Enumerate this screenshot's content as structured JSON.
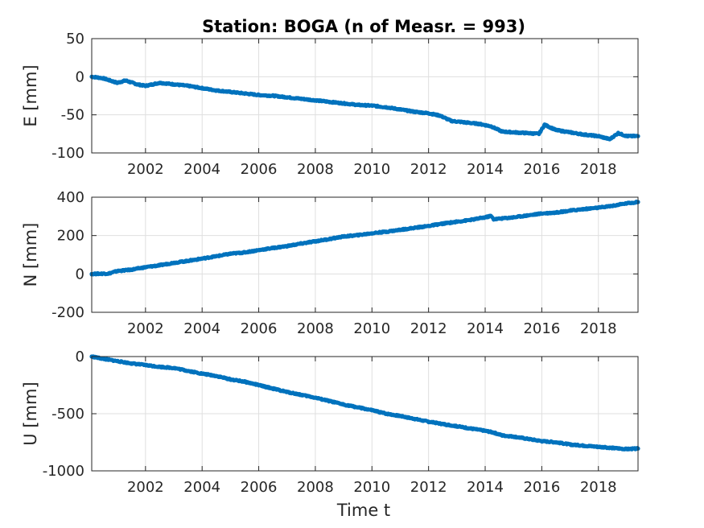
{
  "chart_data": {
    "type": "scatter",
    "title": "Station: BOGA (n of Measr. = 993)",
    "xlabel": "Time t",
    "x_ticks": [
      "2002",
      "2004",
      "2006",
      "2008",
      "2010",
      "2012",
      "2014",
      "2016",
      "2018"
    ],
    "xlim": [
      2000.1,
      2019.4
    ],
    "grid": true,
    "marker_color": "#0072BD",
    "panels": [
      {
        "id": "E",
        "ylabel": "E [mm]",
        "ylim": [
          -100,
          50
        ],
        "y_ticks": [
          "-100",
          "-50",
          "0",
          "50"
        ],
        "series": {
          "x": [
            2000.1,
            2000.5,
            2001.0,
            2001.3,
            2001.7,
            2002.0,
            2002.5,
            2003.0,
            2003.5,
            2004.0,
            2004.5,
            2005.0,
            2005.5,
            2006.0,
            2006.5,
            2007.0,
            2007.5,
            2008.0,
            2008.5,
            2009.0,
            2009.5,
            2010.0,
            2010.5,
            2011.0,
            2011.5,
            2012.0,
            2012.4,
            2012.8,
            2013.3,
            2013.8,
            2014.2,
            2014.6,
            2015.0,
            2015.5,
            2015.9,
            2016.1,
            2016.5,
            2017.0,
            2017.5,
            2018.0,
            2018.4,
            2018.7,
            2019.0,
            2019.4
          ],
          "y": [
            0,
            -2,
            -8,
            -5,
            -10,
            -12,
            -8,
            -10,
            -12,
            -15,
            -18,
            -20,
            -22,
            -24,
            -25,
            -27,
            -29,
            -31,
            -33,
            -35,
            -37,
            -38,
            -40,
            -43,
            -46,
            -48,
            -51,
            -58,
            -60,
            -62,
            -65,
            -72,
            -73,
            -74,
            -75,
            -63,
            -70,
            -73,
            -76,
            -78,
            -82,
            -74,
            -78,
            -78
          ]
        }
      },
      {
        "id": "N",
        "ylabel": "N [mm]",
        "ylim": [
          -200,
          400
        ],
        "y_ticks": [
          "-200",
          "0",
          "200",
          "400"
        ],
        "series": {
          "x": [
            2000.1,
            2000.7,
            2001.0,
            2001.5,
            2002.0,
            2002.5,
            2003.0,
            2003.5,
            2004.0,
            2004.5,
            2005.0,
            2005.5,
            2006.0,
            2006.5,
            2007.0,
            2007.5,
            2008.0,
            2008.5,
            2009.0,
            2009.5,
            2010.0,
            2010.5,
            2011.0,
            2011.5,
            2012.0,
            2012.5,
            2013.0,
            2013.5,
            2014.0,
            2014.2,
            2014.3,
            2015.0,
            2015.5,
            2016.0,
            2016.5,
            2017.0,
            2017.5,
            2018.0,
            2018.5,
            2019.0,
            2019.4
          ],
          "y": [
            0,
            2,
            15,
            22,
            35,
            45,
            58,
            68,
            80,
            92,
            105,
            112,
            124,
            135,
            145,
            158,
            170,
            182,
            195,
            202,
            212,
            220,
            230,
            240,
            250,
            262,
            272,
            282,
            295,
            302,
            285,
            295,
            305,
            315,
            320,
            330,
            338,
            345,
            355,
            368,
            375
          ]
        }
      },
      {
        "id": "U",
        "ylabel": "U [mm]",
        "ylim": [
          -1000,
          0
        ],
        "y_ticks": [
          "-1000",
          "-500",
          "0"
        ],
        "series": {
          "x": [
            2000.1,
            2000.5,
            2001.0,
            2001.5,
            2002.0,
            2002.5,
            2003.0,
            2003.5,
            2004.0,
            2004.5,
            2005.0,
            2005.5,
            2006.0,
            2006.5,
            2007.0,
            2007.5,
            2008.0,
            2008.5,
            2009.0,
            2009.5,
            2010.0,
            2010.5,
            2011.0,
            2011.5,
            2012.0,
            2012.5,
            2013.0,
            2013.5,
            2014.0,
            2014.3,
            2014.6,
            2015.0,
            2015.5,
            2016.0,
            2016.5,
            2017.0,
            2017.5,
            2018.0,
            2018.5,
            2019.0,
            2019.4
          ],
          "y": [
            0,
            -20,
            -40,
            -60,
            -75,
            -90,
            -100,
            -125,
            -150,
            -170,
            -200,
            -220,
            -250,
            -280,
            -310,
            -335,
            -360,
            -390,
            -420,
            -445,
            -470,
            -500,
            -520,
            -545,
            -570,
            -590,
            -610,
            -630,
            -650,
            -665,
            -690,
            -700,
            -720,
            -740,
            -750,
            -770,
            -780,
            -790,
            -800,
            -810,
            -805
          ]
        }
      }
    ]
  }
}
